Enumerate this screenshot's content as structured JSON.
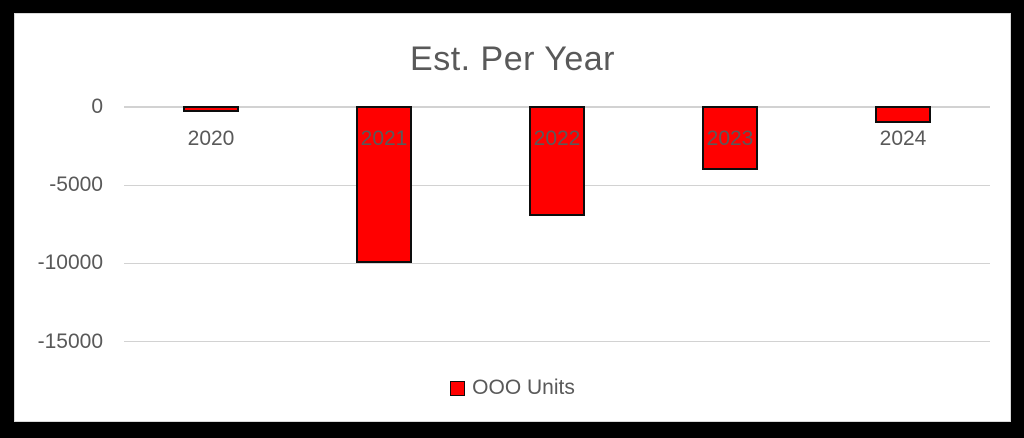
{
  "frame": {
    "background": "#000000",
    "chart_background": "#ffffff",
    "chart_border": "#d9d9d9"
  },
  "chart_data": {
    "type": "bar",
    "title": "Est. Per Year",
    "categories": [
      "2020",
      "2021",
      "2022",
      "2023",
      "2024"
    ],
    "series": [
      {
        "name": "OOO Units",
        "values": [
          -300,
          -10000,
          -7000,
          -4000,
          -1000
        ]
      }
    ],
    "xlabel": "",
    "ylabel": "",
    "ylim": [
      -15000,
      0
    ],
    "yticks": [
      0,
      -5000,
      -10000,
      -15000
    ],
    "ytick_labels": [
      "0",
      "-5000",
      "-10000",
      "-15000"
    ],
    "grid": true,
    "legend_position": "bottom",
    "colors": {
      "bar_fill": "#ff0000",
      "bar_border": "#0d0d0d",
      "text": "#595959",
      "gridline": "#d2d2d2"
    }
  }
}
